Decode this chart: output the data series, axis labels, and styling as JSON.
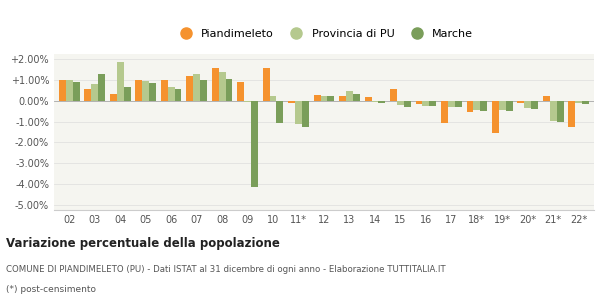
{
  "years": [
    "02",
    "03",
    "04",
    "05",
    "06",
    "07",
    "08",
    "09",
    "10",
    "11*",
    "12",
    "13",
    "14",
    "15",
    "16",
    "17",
    "18*",
    "19*",
    "20*",
    "21*",
    "22*"
  ],
  "piandimeleto": [
    0.01,
    0.0055,
    0.0035,
    0.01,
    0.01,
    0.012,
    0.016,
    0.009,
    0.016,
    -0.001,
    0.003,
    0.0025,
    0.002,
    0.0055,
    -0.0015,
    -0.0105,
    -0.0055,
    -0.0155,
    -0.001,
    0.0025,
    -0.0125
  ],
  "provincia_pu": [
    0.01,
    0.008,
    0.0185,
    0.0095,
    0.0065,
    0.013,
    0.014,
    -0.0005,
    0.0025,
    -0.011,
    0.0025,
    0.0045,
    -0.0005,
    -0.002,
    -0.0025,
    -0.003,
    -0.0045,
    -0.0045,
    -0.0035,
    -0.0095,
    -0.001
  ],
  "marche": [
    0.009,
    0.013,
    0.0065,
    0.0085,
    0.0055,
    0.01,
    0.0105,
    -0.0415,
    -0.0105,
    -0.0125,
    0.0025,
    0.0035,
    -0.001,
    -0.003,
    -0.0025,
    -0.003,
    -0.005,
    -0.005,
    -0.004,
    -0.01,
    -0.0015
  ],
  "color_piandimeleto": "#f5922e",
  "color_provincia": "#b5c98e",
  "color_marche": "#7a9e5a",
  "bg_color": "#f5f5f0",
  "grid_color": "#dddddd",
  "title_bold": "Variazione percentuale della popolazione",
  "subtitle": "COMUNE DI PIANDIMELETO (PU) - Dati ISTAT al 31 dicembre di ogni anno - Elaborazione TUTTITALIA.IT",
  "footnote": "(*) post-censimento",
  "ymin": -0.0525,
  "ymax": 0.0225,
  "ytick_vals": [
    -0.05,
    -0.04,
    -0.03,
    -0.02,
    -0.01,
    0.0,
    0.01,
    0.02
  ]
}
